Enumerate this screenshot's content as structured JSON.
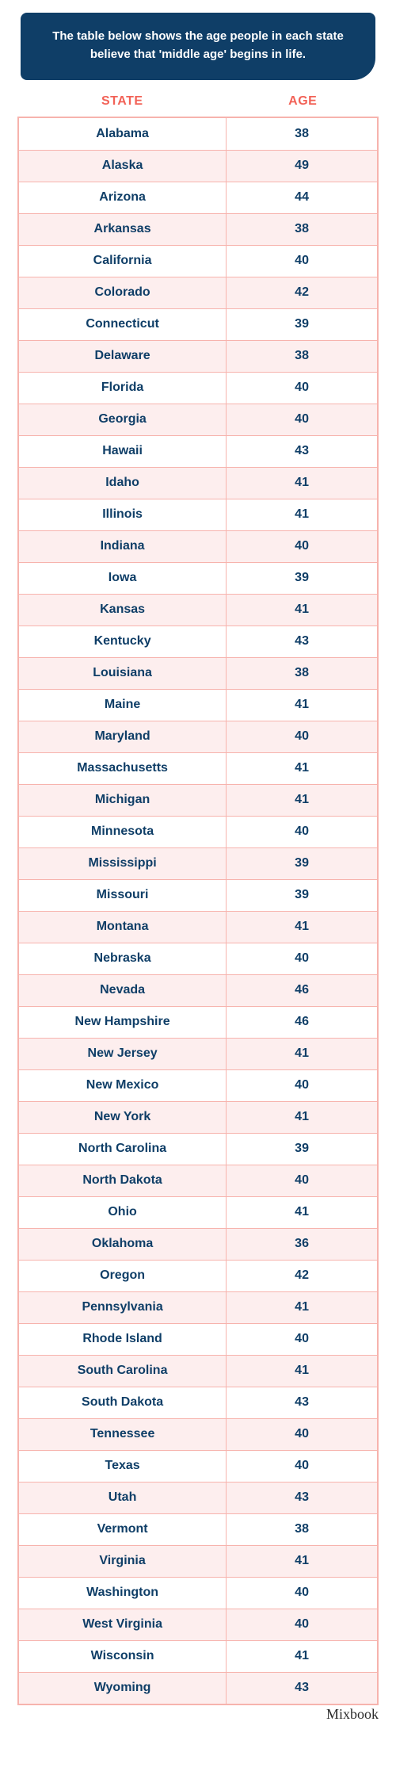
{
  "caption": "The table below shows the age people in each state believe that 'middle age' begins in life.",
  "headers": {
    "state": "STATE",
    "age": "AGE"
  },
  "brand": "Mixbook",
  "colors": {
    "caption_bg": "#0f3e67",
    "caption_text": "#ffffff",
    "header_text": "#f26257",
    "border": "#f7b3ad",
    "row_alt_bg": "#fdeeee",
    "row_bg": "#ffffff",
    "cell_text": "#0f3e67"
  },
  "rows": [
    {
      "state": "Alabama",
      "age": 38
    },
    {
      "state": "Alaska",
      "age": 49
    },
    {
      "state": "Arizona",
      "age": 44
    },
    {
      "state": "Arkansas",
      "age": 38
    },
    {
      "state": "California",
      "age": 40
    },
    {
      "state": "Colorado",
      "age": 42
    },
    {
      "state": "Connecticut",
      "age": 39
    },
    {
      "state": "Delaware",
      "age": 38
    },
    {
      "state": "Florida",
      "age": 40
    },
    {
      "state": "Georgia",
      "age": 40
    },
    {
      "state": "Hawaii",
      "age": 43
    },
    {
      "state": "Idaho",
      "age": 41
    },
    {
      "state": "Illinois",
      "age": 41
    },
    {
      "state": "Indiana",
      "age": 40
    },
    {
      "state": "Iowa",
      "age": 39
    },
    {
      "state": "Kansas",
      "age": 41
    },
    {
      "state": "Kentucky",
      "age": 43
    },
    {
      "state": "Louisiana",
      "age": 38
    },
    {
      "state": "Maine",
      "age": 41
    },
    {
      "state": "Maryland",
      "age": 40
    },
    {
      "state": "Massachusetts",
      "age": 41
    },
    {
      "state": "Michigan",
      "age": 41
    },
    {
      "state": "Minnesota",
      "age": 40
    },
    {
      "state": "Mississippi",
      "age": 39
    },
    {
      "state": "Missouri",
      "age": 39
    },
    {
      "state": "Montana",
      "age": 41
    },
    {
      "state": "Nebraska",
      "age": 40
    },
    {
      "state": "Nevada",
      "age": 46
    },
    {
      "state": "New Hampshire",
      "age": 46
    },
    {
      "state": "New Jersey",
      "age": 41
    },
    {
      "state": "New Mexico",
      "age": 40
    },
    {
      "state": "New York",
      "age": 41
    },
    {
      "state": "North Carolina",
      "age": 39
    },
    {
      "state": "North Dakota",
      "age": 40
    },
    {
      "state": "Ohio",
      "age": 41
    },
    {
      "state": "Oklahoma",
      "age": 36
    },
    {
      "state": "Oregon",
      "age": 42
    },
    {
      "state": "Pennsylvania",
      "age": 41
    },
    {
      "state": "Rhode Island",
      "age": 40
    },
    {
      "state": "South Carolina",
      "age": 41
    },
    {
      "state": "South Dakota",
      "age": 43
    },
    {
      "state": "Tennessee",
      "age": 40
    },
    {
      "state": "Texas",
      "age": 40
    },
    {
      "state": "Utah",
      "age": 43
    },
    {
      "state": "Vermont",
      "age": 38
    },
    {
      "state": "Virginia",
      "age": 41
    },
    {
      "state": "Washington",
      "age": 40
    },
    {
      "state": "West Virginia",
      "age": 40
    },
    {
      "state": "Wisconsin",
      "age": 41
    },
    {
      "state": "Wyoming",
      "age": 43
    }
  ]
}
